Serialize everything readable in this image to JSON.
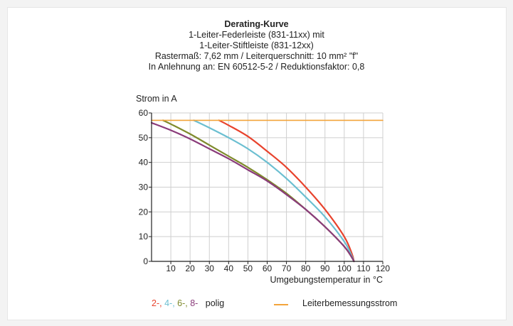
{
  "title": "Derating-Kurve",
  "subtitle_lines": [
    "1-Leiter-Federleiste (831-11xx) mit",
    "1-Leiter-Stiftleiste (831-12xx)",
    "Rastermaß: 7,62 mm / Leiterquerschnitt: 10 mm² \"f\"",
    "In Anlehnung an: EN 60512-5-2 / Reduktionsfaktor: 0,8"
  ],
  "legend": {
    "poles_labels": [
      "2-",
      "4-",
      "6-",
      "8-"
    ],
    "poles_separator": ", ",
    "poles_suffix": "polig",
    "rated_label": "Leiterbemessungsstrom"
  },
  "colors": {
    "p2": "#e8432d",
    "p4": "#6bbfd1",
    "p6": "#7f8a2c",
    "p8": "#8a3b7a",
    "rated": "#f3a43a",
    "grid": "#cfcfcf",
    "axis": "#222222"
  },
  "chart_data": {
    "type": "line",
    "title": "Derating-Kurve",
    "xlabel": "Umgebungstemperatur in °C",
    "ylabel": "Strom in A",
    "xlim": [
      0,
      120
    ],
    "ylim": [
      0,
      60
    ],
    "xticks": [
      10,
      20,
      30,
      40,
      50,
      60,
      70,
      80,
      90,
      100,
      110,
      120
    ],
    "yticks": [
      0,
      10,
      20,
      30,
      40,
      50,
      60
    ],
    "grid": true,
    "legend_position": "bottom",
    "series": [
      {
        "key": "p2",
        "color": "#e8432d",
        "points": [
          [
            35,
            57
          ],
          [
            40,
            55
          ],
          [
            50,
            50.5
          ],
          [
            60,
            44.5
          ],
          [
            70,
            38
          ],
          [
            80,
            30
          ],
          [
            90,
            21
          ],
          [
            100,
            10
          ],
          [
            104,
            3
          ],
          [
            105,
            0
          ]
        ]
      },
      {
        "key": "p4",
        "color": "#6bbfd1",
        "points": [
          [
            22,
            57
          ],
          [
            30,
            54
          ],
          [
            40,
            50
          ],
          [
            50,
            45.5
          ],
          [
            60,
            40
          ],
          [
            70,
            33.5
          ],
          [
            80,
            26
          ],
          [
            90,
            18
          ],
          [
            100,
            8
          ],
          [
            104,
            2
          ],
          [
            105,
            0
          ]
        ]
      },
      {
        "key": "p6",
        "color": "#7f8a2c",
        "points": [
          [
            6,
            57
          ],
          [
            10,
            55.5
          ],
          [
            20,
            51.5
          ],
          [
            30,
            47
          ],
          [
            40,
            42.5
          ],
          [
            50,
            38
          ],
          [
            60,
            33
          ],
          [
            70,
            27.5
          ],
          [
            80,
            21
          ],
          [
            90,
            14
          ],
          [
            100,
            6
          ],
          [
            104,
            1.5
          ],
          [
            105,
            0
          ]
        ]
      },
      {
        "key": "p8",
        "color": "#8a3b7a",
        "points": [
          [
            0,
            56
          ],
          [
            10,
            53
          ],
          [
            20,
            49.5
          ],
          [
            30,
            45.5
          ],
          [
            40,
            41.5
          ],
          [
            50,
            37
          ],
          [
            60,
            32.5
          ],
          [
            70,
            27
          ],
          [
            80,
            21
          ],
          [
            90,
            14
          ],
          [
            100,
            6
          ],
          [
            104,
            1.5
          ],
          [
            105,
            0
          ]
        ]
      },
      {
        "key": "rated",
        "color": "#f3a43a",
        "points": [
          [
            0,
            57
          ],
          [
            120,
            57
          ]
        ]
      }
    ]
  }
}
